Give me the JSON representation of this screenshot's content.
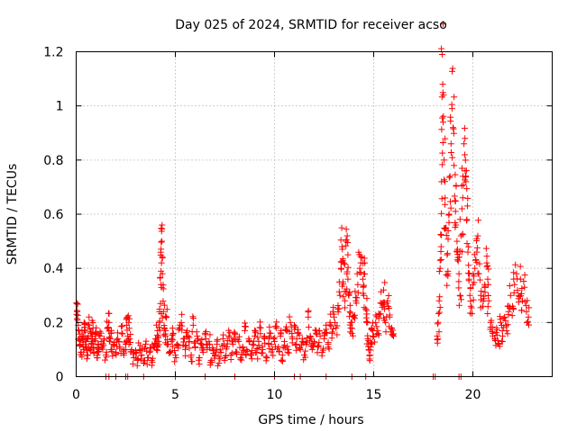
{
  "chart_data": {
    "type": "scatter",
    "title": "Day 025 of 2024, SRMTID for receiver acso",
    "xlabel": "GPS time / hours",
    "ylabel": "SRMTID / TECUs",
    "xlim": [
      0,
      24
    ],
    "ylim": [
      0,
      1.2
    ],
    "xticks": [
      0,
      5,
      10,
      15,
      20
    ],
    "xtick_labels": [
      "0",
      "5",
      "10",
      "15",
      "20"
    ],
    "yticks": [
      0,
      0.2,
      0.4,
      0.6,
      0.8,
      1,
      1.2
    ],
    "ytick_labels": [
      "0",
      "0.2",
      "0.4",
      "0.6",
      "0.8",
      "1",
      "1.2"
    ],
    "grid": true,
    "marker": "+",
    "color": "#ff0000",
    "series": [
      {
        "name": "SRMTID",
        "points": [
          [
            0.02,
            0.23
          ],
          [
            0.05,
            0.24
          ],
          [
            0.1,
            0.19
          ],
          [
            0.15,
            0.14
          ],
          [
            0.2,
            0.12
          ],
          [
            0.25,
            0.09
          ],
          [
            0.3,
            0.15
          ],
          [
            0.35,
            0.11
          ],
          [
            0.4,
            0.2
          ],
          [
            0.45,
            0.17
          ],
          [
            0.5,
            0.13
          ],
          [
            0.55,
            0.08
          ],
          [
            0.6,
            0.14
          ],
          [
            0.65,
            0.19
          ],
          [
            0.7,
            0.1
          ],
          [
            0.75,
            0.15
          ],
          [
            0.8,
            0.12
          ],
          [
            0.85,
            0.18
          ],
          [
            0.9,
            0.09
          ],
          [
            0.95,
            0.14
          ],
          [
            1.0,
            0.16
          ],
          [
            1.05,
            0.07
          ],
          [
            1.1,
            0.12
          ],
          [
            1.15,
            0.1
          ],
          [
            1.2,
            0.15
          ],
          [
            1.3,
            0.11
          ],
          [
            1.4,
            0.14
          ],
          [
            1.5,
            0.08
          ],
          [
            1.6,
            0.18
          ],
          [
            1.65,
            0.2
          ],
          [
            1.7,
            0.13
          ],
          [
            1.75,
            0.16
          ],
          [
            1.8,
            0.1
          ],
          [
            1.9,
            0.12
          ],
          [
            2.0,
            0.09
          ],
          [
            2.1,
            0.14
          ],
          [
            2.2,
            0.11
          ],
          [
            2.3,
            0.16
          ],
          [
            2.4,
            0.08
          ],
          [
            2.5,
            0.12
          ],
          [
            2.55,
            0.19
          ],
          [
            2.6,
            0.15
          ],
          [
            2.65,
            0.2
          ],
          [
            2.7,
            0.14
          ],
          [
            2.8,
            0.1
          ],
          [
            2.9,
            0.07
          ],
          [
            3.0,
            0.09
          ],
          [
            3.1,
            0.06
          ],
          [
            3.2,
            0.1
          ],
          [
            3.3,
            0.08
          ],
          [
            3.4,
            0.05
          ],
          [
            3.5,
            0.12
          ],
          [
            3.6,
            0.07
          ],
          [
            3.7,
            0.09
          ],
          [
            3.8,
            0.06
          ],
          [
            3.9,
            0.11
          ],
          [
            4.0,
            0.14
          ],
          [
            4.05,
            0.1
          ],
          [
            4.1,
            0.17
          ],
          [
            4.15,
            0.13
          ],
          [
            4.2,
            0.2
          ],
          [
            4.25,
            0.27
          ],
          [
            4.28,
            0.34
          ],
          [
            4.3,
            0.42
          ],
          [
            4.32,
            0.5
          ],
          [
            4.33,
            0.56
          ],
          [
            4.35,
            0.38
          ],
          [
            4.4,
            0.24
          ],
          [
            4.45,
            0.18
          ],
          [
            4.5,
            0.15
          ],
          [
            4.55,
            0.22
          ],
          [
            4.6,
            0.12
          ],
          [
            4.7,
            0.09
          ],
          [
            4.8,
            0.13
          ],
          [
            4.9,
            0.16
          ],
          [
            5.0,
            0.08
          ],
          [
            5.1,
            0.12
          ],
          [
            5.2,
            0.18
          ],
          [
            5.3,
            0.2
          ],
          [
            5.4,
            0.14
          ],
          [
            5.5,
            0.1
          ],
          [
            5.6,
            0.17
          ],
          [
            5.7,
            0.13
          ],
          [
            5.8,
            0.08
          ],
          [
            5.9,
            0.19
          ],
          [
            6.0,
            0.11
          ],
          [
            6.1,
            0.15
          ],
          [
            6.2,
            0.07
          ],
          [
            6.3,
            0.12
          ],
          [
            6.4,
            0.09
          ],
          [
            6.5,
            0.16
          ],
          [
            6.6,
            0.1
          ],
          [
            6.7,
            0.13
          ],
          [
            6.8,
            0.06
          ],
          [
            6.9,
            0.1
          ],
          [
            7.0,
            0.08
          ],
          [
            7.1,
            0.12
          ],
          [
            7.2,
            0.05
          ],
          [
            7.3,
            0.09
          ],
          [
            7.4,
            0.14
          ],
          [
            7.5,
            0.07
          ],
          [
            7.6,
            0.11
          ],
          [
            7.7,
            0.15
          ],
          [
            7.8,
            0.08
          ],
          [
            7.9,
            0.12
          ],
          [
            8.0,
            0.16
          ],
          [
            8.1,
            0.09
          ],
          [
            8.2,
            0.13
          ],
          [
            8.3,
            0.07
          ],
          [
            8.4,
            0.11
          ],
          [
            8.5,
            0.17
          ],
          [
            8.6,
            0.1
          ],
          [
            8.7,
            0.14
          ],
          [
            8.8,
            0.08
          ],
          [
            8.9,
            0.12
          ],
          [
            9.0,
            0.15
          ],
          [
            9.1,
            0.09
          ],
          [
            9.2,
            0.13
          ],
          [
            9.3,
            0.18
          ],
          [
            9.4,
            0.1
          ],
          [
            9.5,
            0.14
          ],
          [
            9.6,
            0.07
          ],
          [
            9.7,
            0.12
          ],
          [
            9.8,
            0.16
          ],
          [
            9.9,
            0.1
          ],
          [
            10.0,
            0.13
          ],
          [
            10.1,
            0.18
          ],
          [
            10.2,
            0.11
          ],
          [
            10.3,
            0.15
          ],
          [
            10.4,
            0.08
          ],
          [
            10.5,
            0.13
          ],
          [
            10.6,
            0.17
          ],
          [
            10.7,
            0.1
          ],
          [
            10.8,
            0.2
          ],
          [
            10.9,
            0.14
          ],
          [
            11.0,
            0.19
          ],
          [
            11.1,
            0.12
          ],
          [
            11.2,
            0.16
          ],
          [
            11.3,
            0.1
          ],
          [
            11.4,
            0.14
          ],
          [
            11.5,
            0.08
          ],
          [
            11.6,
            0.12
          ],
          [
            11.7,
            0.22
          ],
          [
            11.8,
            0.15
          ],
          [
            11.9,
            0.1
          ],
          [
            12.0,
            0.13
          ],
          [
            12.1,
            0.17
          ],
          [
            12.2,
            0.11
          ],
          [
            12.3,
            0.15
          ],
          [
            12.4,
            0.09
          ],
          [
            12.5,
            0.14
          ],
          [
            12.6,
            0.19
          ],
          [
            12.7,
            0.12
          ],
          [
            12.8,
            0.2
          ],
          [
            12.9,
            0.16
          ],
          [
            13.0,
            0.22
          ],
          [
            13.1,
            0.18
          ],
          [
            13.2,
            0.25
          ],
          [
            13.3,
            0.3
          ],
          [
            13.35,
            0.4
          ],
          [
            13.4,
            0.48
          ],
          [
            13.45,
            0.35
          ],
          [
            13.5,
            0.42
          ],
          [
            13.55,
            0.28
          ],
          [
            13.6,
            0.5
          ],
          [
            13.65,
            0.38
          ],
          [
            13.7,
            0.45
          ],
          [
            13.75,
            0.3
          ],
          [
            13.8,
            0.24
          ],
          [
            13.85,
            0.2
          ],
          [
            13.9,
            0.16
          ],
          [
            14.0,
            0.22
          ],
          [
            14.1,
            0.28
          ],
          [
            14.2,
            0.34
          ],
          [
            14.3,
            0.4
          ],
          [
            14.4,
            0.44
          ],
          [
            14.45,
            0.36
          ],
          [
            14.5,
            0.3
          ],
          [
            14.55,
            0.42
          ],
          [
            14.6,
            0.25
          ],
          [
            14.65,
            0.2
          ],
          [
            14.7,
            0.14
          ],
          [
            14.75,
            0.1
          ],
          [
            14.8,
            0.08
          ],
          [
            14.85,
            0.12
          ],
          [
            14.9,
            0.18
          ],
          [
            15.0,
            0.15
          ],
          [
            15.1,
            0.2
          ],
          [
            15.2,
            0.17
          ],
          [
            15.3,
            0.23
          ],
          [
            15.4,
            0.27
          ],
          [
            15.5,
            0.32
          ],
          [
            15.55,
            0.25
          ],
          [
            15.6,
            0.2
          ],
          [
            15.7,
            0.28
          ],
          [
            15.8,
            0.22
          ],
          [
            15.9,
            0.18
          ],
          [
            16.0,
            0.15
          ],
          [
            18.2,
            0.15
          ],
          [
            18.25,
            0.2
          ],
          [
            18.3,
            0.28
          ],
          [
            18.35,
            0.4
          ],
          [
            18.4,
            0.48
          ],
          [
            18.42,
            0.72
          ],
          [
            18.45,
            1.19
          ],
          [
            18.48,
            1.08
          ],
          [
            18.5,
            0.94
          ],
          [
            18.55,
            0.8
          ],
          [
            18.6,
            0.66
          ],
          [
            18.65,
            0.55
          ],
          [
            18.7,
            0.45
          ],
          [
            18.75,
            0.38
          ],
          [
            18.8,
            0.6
          ],
          [
            18.85,
            0.74
          ],
          [
            18.9,
            0.86
          ],
          [
            18.95,
            0.99
          ],
          [
            19.0,
            0.92
          ],
          [
            19.05,
            0.78
          ],
          [
            19.1,
            0.65
          ],
          [
            19.15,
            0.56
          ],
          [
            19.2,
            0.5
          ],
          [
            19.25,
            0.44
          ],
          [
            19.3,
            0.38
          ],
          [
            19.35,
            0.3
          ],
          [
            19.4,
            0.52
          ],
          [
            19.45,
            0.62
          ],
          [
            19.5,
            0.74
          ],
          [
            19.55,
            0.86
          ],
          [
            19.6,
            0.88
          ],
          [
            19.65,
            0.72
          ],
          [
            19.7,
            0.58
          ],
          [
            19.75,
            0.46
          ],
          [
            19.8,
            0.36
          ],
          [
            19.85,
            0.3
          ],
          [
            19.9,
            0.26
          ],
          [
            20.0,
            0.34
          ],
          [
            20.1,
            0.4
          ],
          [
            20.2,
            0.46
          ],
          [
            20.25,
            0.52
          ],
          [
            20.3,
            0.38
          ],
          [
            20.4,
            0.3
          ],
          [
            20.5,
            0.26
          ],
          [
            20.6,
            0.34
          ],
          [
            20.7,
            0.42
          ],
          [
            20.75,
            0.36
          ],
          [
            20.8,
            0.28
          ],
          [
            20.9,
            0.2
          ],
          [
            21.0,
            0.16
          ],
          [
            21.1,
            0.14
          ],
          [
            21.2,
            0.18
          ],
          [
            21.3,
            0.12
          ],
          [
            21.4,
            0.2
          ],
          [
            21.5,
            0.15
          ],
          [
            21.6,
            0.22
          ],
          [
            21.7,
            0.17
          ],
          [
            21.8,
            0.24
          ],
          [
            21.9,
            0.3
          ],
          [
            22.0,
            0.26
          ],
          [
            22.1,
            0.34
          ],
          [
            22.2,
            0.38
          ],
          [
            22.3,
            0.3
          ],
          [
            22.4,
            0.36
          ],
          [
            22.5,
            0.28
          ],
          [
            22.6,
            0.33
          ],
          [
            22.7,
            0.24
          ],
          [
            22.8,
            0.22
          ]
        ]
      }
    ],
    "zero_markers_x": [
      1.5,
      1.65,
      2.0,
      2.5,
      2.6,
      3.4,
      5.0,
      6.5,
      8.0,
      10.0,
      11.0,
      11.3,
      12.6,
      13.9,
      14.6,
      18.0,
      18.1,
      19.3,
      19.4
    ]
  }
}
